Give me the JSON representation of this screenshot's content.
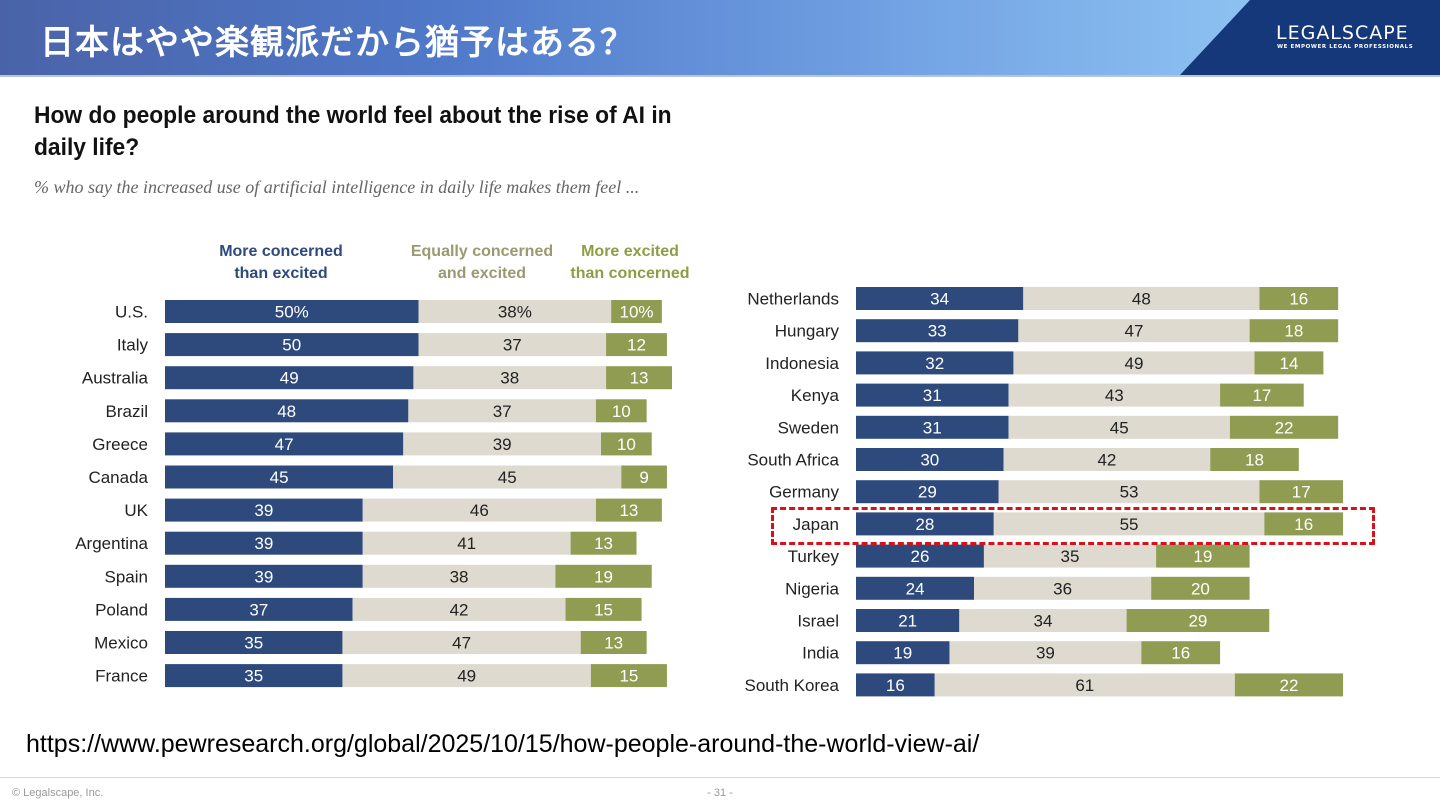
{
  "slide": {
    "title": "日本はやや楽観派だから猶予はある？",
    "logo": {
      "name": "LEGALSCAPE",
      "tagline": "WE EMPOWER LEGAL PROFESSIONALS"
    },
    "source_url": "https://www.pewresearch.org/global/2025/10/15/how-people-around-the-world-view-ai/",
    "footer_copyright": "© Legalscape, Inc.",
    "page_number": "- 31 -"
  },
  "colors": {
    "concerned": "#2e4a7d",
    "equal": "#dedad0",
    "excited": "#8f9c52",
    "highlight": "#d8101a"
  },
  "chart_data": {
    "type": "bar",
    "orientation": "horizontal-stacked",
    "title": "How do people around the world feel about the rise of AI in daily life?",
    "subtitle": "% who say the increased use of artificial intelligence in daily life makes them feel ...",
    "legend": [
      {
        "key": "concerned",
        "label_line1": "More concerned",
        "label_line2": "than excited"
      },
      {
        "key": "equal",
        "label_line1": "Equally concerned",
        "label_line2": "and excited"
      },
      {
        "key": "excited",
        "label_line1": "More excited",
        "label_line2": "than concerned"
      }
    ],
    "xlim": [
      0,
      100
    ],
    "first_label_percent": true,
    "highlighted_category": "Japan",
    "panels": [
      {
        "name": "left",
        "categories": [
          "U.S.",
          "Italy",
          "Australia",
          "Brazil",
          "Greece",
          "Canada",
          "UK",
          "Argentina",
          "Spain",
          "Poland",
          "Mexico",
          "France"
        ],
        "series": [
          {
            "name": "More concerned than excited",
            "key": "concerned",
            "values": [
              50,
              50,
              49,
              48,
              47,
              45,
              39,
              39,
              39,
              37,
              35,
              35
            ]
          },
          {
            "name": "Equally concerned and excited",
            "key": "equal",
            "values": [
              38,
              37,
              38,
              37,
              39,
              45,
              46,
              41,
              38,
              42,
              47,
              49
            ]
          },
          {
            "name": "More excited than concerned",
            "key": "excited",
            "values": [
              10,
              12,
              13,
              10,
              10,
              9,
              13,
              13,
              19,
              15,
              13,
              15
            ]
          }
        ]
      },
      {
        "name": "right",
        "categories": [
          "Netherlands",
          "Hungary",
          "Indonesia",
          "Kenya",
          "Sweden",
          "South Africa",
          "Germany",
          "Japan",
          "Turkey",
          "Nigeria",
          "Israel",
          "India",
          "South Korea"
        ],
        "series": [
          {
            "name": "More concerned than excited",
            "key": "concerned",
            "values": [
              34,
              33,
              32,
              31,
              31,
              30,
              29,
              28,
              26,
              24,
              21,
              19,
              16
            ]
          },
          {
            "name": "Equally concerned and excited",
            "key": "equal",
            "values": [
              48,
              47,
              49,
              43,
              45,
              42,
              53,
              55,
              35,
              36,
              34,
              39,
              61
            ]
          },
          {
            "name": "More excited than concerned",
            "key": "excited",
            "values": [
              16,
              18,
              14,
              17,
              22,
              18,
              17,
              16,
              19,
              20,
              29,
              16,
              22
            ]
          }
        ]
      }
    ]
  }
}
